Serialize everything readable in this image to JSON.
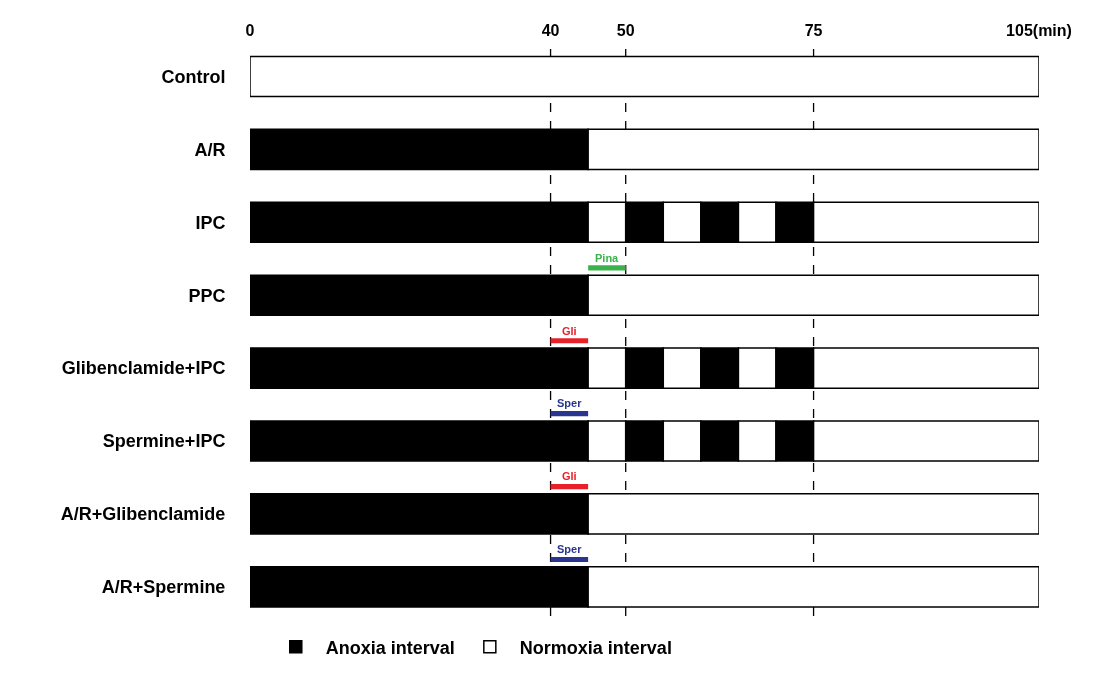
{
  "chart_data": {
    "type": "bar",
    "orientation": "horizontal",
    "grid": false,
    "legend": "bottom",
    "categories": [
      "Control",
      "A/R",
      "IPC",
      "PPC",
      "Glibenclamide+IPC",
      "Spermine+IPC",
      "A/R+Glibenclamide",
      "A/R+Spermine"
    ],
    "xlim": [
      0,
      105
    ],
    "xticks": [
      0,
      40,
      50,
      75,
      {
        "value": 105,
        "label": "105(min)"
      }
    ],
    "series": [
      {
        "name": "Anoxia interval",
        "color": "#000000",
        "base": [
          null,
          0,
          0,
          0,
          0,
          0,
          0,
          0
        ],
        "values": [
          null,
          45,
          45,
          45,
          45,
          45,
          45,
          45
        ]
      },
      {
        "name": "Normoxia interval",
        "color": "#ffffff",
        "base": [
          0,
          45,
          45,
          45,
          45,
          45,
          45,
          45
        ],
        "values": [
          105,
          60,
          5,
          60,
          5,
          5,
          60,
          60
        ]
      },
      {
        "color": "#000000",
        "base": [
          null,
          null,
          50,
          null,
          50,
          50,
          null,
          null
        ],
        "values": [
          null,
          null,
          5,
          null,
          5,
          5,
          null,
          null
        ]
      },
      {
        "color": "#ffffff",
        "base": [
          null,
          null,
          55,
          null,
          55,
          55,
          null,
          null
        ],
        "values": [
          null,
          null,
          5,
          null,
          5,
          5,
          null,
          null
        ]
      },
      {
        "color": "#000000",
        "base": [
          null,
          null,
          60,
          null,
          60,
          60,
          null,
          null
        ],
        "values": [
          null,
          null,
          5,
          null,
          5,
          5,
          null,
          null
        ]
      },
      {
        "color": "#ffffff",
        "base": [
          null,
          null,
          65,
          null,
          65,
          65,
          null,
          null
        ],
        "values": [
          null,
          null,
          5,
          null,
          5,
          5,
          null,
          null
        ]
      },
      {
        "color": "#000000",
        "base": [
          null,
          null,
          70,
          null,
          70,
          70,
          null,
          null
        ],
        "values": [
          null,
          null,
          5,
          null,
          5,
          5,
          null,
          null
        ]
      },
      {
        "color": "#ffffff",
        "base": [
          null,
          null,
          75,
          null,
          75,
          75,
          null,
          null
        ],
        "values": [
          null,
          null,
          30,
          null,
          30,
          30,
          null,
          null
        ]
      },
      {
        "colors": [
          null,
          null,
          null,
          "#3cb34a",
          "#e8202a",
          "#2a3590",
          "#e8202a",
          "#2a3590"
        ],
        "base": [
          null,
          null,
          null,
          45,
          40,
          40,
          40,
          40
        ],
        "values": [
          null,
          null,
          null,
          5,
          5,
          5,
          5,
          5
        ],
        "value_labels": [
          null,
          null,
          null,
          "Pina",
          "Gli",
          "Sper",
          "Gli",
          "Sper"
        ]
      }
    ],
    "ref_lines": [
      {
        "axis": "x",
        "value": 40,
        "line_style": "dashed",
        "color": "#000000"
      },
      {
        "axis": "x",
        "value": 50,
        "line_style": "dashed",
        "color": "#000000"
      },
      {
        "axis": "x",
        "value": 75,
        "line_style": "dashed",
        "color": "#000000"
      }
    ]
  }
}
